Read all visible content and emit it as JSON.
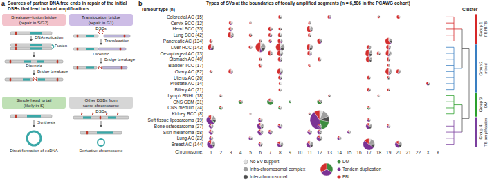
{
  "panel_a": {
    "panel_label": "a",
    "title": "Sources of partner DNA free ends in repair of the initial DSBs that lead to focal amplifications",
    "boxes": [
      {
        "title": [
          "Breakage–fusion bridge",
          "(repair in S/G2)"
        ],
        "color": "#f3c3cc",
        "labels": [
          "DNA replication",
          "Fusion",
          "Dicentric",
          "Bridge breakage"
        ]
      },
      {
        "title": [
          "Translocation bridge",
          "(repair in G1)"
        ],
        "color": "#cdbde6",
        "labels": [
          "DSBs",
          "Translocation",
          "Dicentric",
          "Bridge breakage"
        ]
      },
      {
        "title": [
          "Simple head to tail",
          "(likely in S)"
        ],
        "color": "#bfe0b5",
        "labels": [
          "Synthesis",
          "Direct formation of ecDNA"
        ]
      },
      {
        "title": [
          "Other DSBs from",
          "same chromosome"
        ],
        "color": "#d6d6d6",
        "labels": [
          "DSBs",
          "Derivative chromosome"
        ]
      }
    ]
  },
  "chart_data": {
    "type": "bubble_pie",
    "panel_label": "b",
    "title": "Types of SVs at the boundaries of focally amplified segments (n = 6,586 in the PCAWG cohort)",
    "y_label": "Tumour type (n)",
    "x_label": "Chromosome:",
    "cluster_title": "Cluster",
    "grid": false,
    "categories": [
      "1",
      "2",
      "3",
      "4",
      "5",
      "6",
      "7",
      "8",
      "9",
      "10",
      "11",
      "12",
      "13",
      "14",
      "15",
      "16",
      "17",
      "18",
      "19",
      "20",
      "21",
      "22",
      "X",
      "Y"
    ],
    "rows": [
      "Colorectal AC (15)",
      "Cervix SCC (12)",
      "Head SCC (35)",
      "Lung SCC (42)",
      "Pancreatic AC (134)",
      "Liver HCC (143)",
      "Oesophageal AC (73)",
      "Stomach AC (40)",
      "Bladder TCC (17)",
      "Ovary AC (82)",
      "Uterus AC (26)",
      "Prostate AC (14)",
      "Biliary AC (21)",
      "Lymph BNHL (18)",
      "CNS GBM (31)",
      "CNS medullo (24)",
      "Kidney RCC (8)",
      "Soft tissue liposarcoma (19)",
      "Bone osteosarcoma (27)",
      "Skin melanoma (58)",
      "Lung AC (23)",
      "Breast AC (144)"
    ],
    "sv_types": [
      {
        "name": "No SV support",
        "color": "#e0e0e0"
      },
      {
        "name": "Intra-chromosomal complex",
        "color": "#9e9e9e"
      },
      {
        "name": "Inter-chromosomal",
        "color": "#4d4d4d"
      },
      {
        "name": "DM",
        "color": "#3d8c40"
      },
      {
        "name": "Tandem duplication",
        "color": "#7b3294"
      },
      {
        "name": "FBI",
        "color": "#d32f2f"
      }
    ],
    "bubbles": [
      [
        "Colorectal AC (15)",
        "8",
        [
          1,
          1,
          1,
          0,
          0,
          3
        ]
      ],
      [
        "Colorectal AC (15)",
        "13",
        [
          0,
          1,
          1,
          0,
          1,
          3
        ]
      ],
      [
        "Colorectal AC (15)",
        "18",
        [
          0,
          0,
          1,
          0,
          0,
          2
        ]
      ],
      [
        "Colorectal AC (15)",
        "20",
        [
          1,
          1,
          0,
          0,
          0,
          4
        ]
      ],
      [
        "Cervix SCC (12)",
        "3",
        [
          1,
          1,
          1,
          0,
          1,
          3
        ]
      ],
      [
        "Cervix SCC (12)",
        "5",
        [
          0,
          1,
          0,
          0,
          0,
          2
        ]
      ],
      [
        "Cervix SCC (12)",
        "11",
        [
          0,
          1,
          1,
          0,
          0,
          2
        ]
      ],
      [
        "Head SCC (35)",
        "3",
        [
          1,
          2,
          1,
          0,
          1,
          4
        ]
      ],
      [
        "Head SCC (35)",
        "7",
        [
          1,
          1,
          1,
          0,
          1,
          5
        ]
      ],
      [
        "Head SCC (35)",
        "8",
        [
          0,
          1,
          1,
          0,
          0,
          3
        ]
      ],
      [
        "Head SCC (35)",
        "11",
        [
          2,
          3,
          2,
          0,
          1,
          10
        ]
      ],
      [
        "Lung SCC (42)",
        "3",
        [
          2,
          3,
          2,
          0,
          1,
          8
        ]
      ],
      [
        "Lung SCC (42)",
        "5",
        [
          0,
          1,
          1,
          0,
          0,
          3
        ]
      ],
      [
        "Lung SCC (42)",
        "7",
        [
          1,
          1,
          1,
          0,
          1,
          3
        ]
      ],
      [
        "Lung SCC (42)",
        "8",
        [
          1,
          2,
          1,
          0,
          0,
          4
        ]
      ],
      [
        "Lung SCC (42)",
        "11",
        [
          1,
          1,
          1,
          0,
          0,
          3
        ]
      ],
      [
        "Pancreatic AC (134)",
        "1",
        [
          1,
          1,
          1,
          0,
          0,
          3
        ]
      ],
      [
        "Pancreatic AC (134)",
        "6",
        [
          0,
          1,
          1,
          0,
          0,
          2
        ]
      ],
      [
        "Pancreatic AC (134)",
        "7",
        [
          0,
          1,
          1,
          0,
          1,
          2
        ]
      ],
      [
        "Pancreatic AC (134)",
        "8",
        [
          1,
          2,
          1,
          0,
          1,
          6
        ]
      ],
      [
        "Pancreatic AC (134)",
        "12",
        [
          1,
          2,
          1,
          0,
          1,
          6
        ]
      ],
      [
        "Pancreatic AC (134)",
        "19",
        [
          2,
          3,
          2,
          0,
          1,
          12
        ]
      ],
      [
        "Liver HCC (143)",
        "1",
        [
          3,
          3,
          2,
          0,
          2,
          8
        ]
      ],
      [
        "Liver HCC (143)",
        "5",
        [
          1,
          1,
          1,
          0,
          0,
          3
        ]
      ],
      [
        "Liver HCC (143)",
        "6",
        [
          4,
          8,
          6,
          1,
          3,
          20
        ]
      ],
      [
        "Liver HCC (143)",
        "8",
        [
          4,
          6,
          5,
          0,
          2,
          16
        ]
      ],
      [
        "Liver HCC (143)",
        "11",
        [
          2,
          4,
          3,
          0,
          1,
          8
        ]
      ],
      [
        "Liver HCC (143)",
        "17",
        [
          1,
          2,
          1,
          0,
          1,
          4
        ]
      ],
      [
        "Liver HCC (143)",
        "19",
        [
          1,
          2,
          1,
          0,
          1,
          5
        ]
      ],
      [
        "Oesophageal AC (73)",
        "7",
        [
          1,
          2,
          1,
          0,
          1,
          5
        ]
      ],
      [
        "Oesophageal AC (73)",
        "8",
        [
          2,
          3,
          2,
          0,
          1,
          7
        ]
      ],
      [
        "Oesophageal AC (73)",
        "11",
        [
          1,
          2,
          1,
          0,
          1,
          5
        ]
      ],
      [
        "Oesophageal AC (73)",
        "17",
        [
          2,
          4,
          3,
          0,
          2,
          10
        ]
      ],
      [
        "Oesophageal AC (73)",
        "18",
        [
          1,
          1,
          1,
          0,
          0,
          3
        ]
      ],
      [
        "Oesophageal AC (73)",
        "19",
        [
          2,
          3,
          2,
          0,
          1,
          7
        ]
      ],
      [
        "Stomach AC (40)",
        "6",
        [
          0,
          1,
          1,
          0,
          0,
          2
        ]
      ],
      [
        "Stomach AC (40)",
        "8",
        [
          1,
          2,
          1,
          0,
          1,
          4
        ]
      ],
      [
        "Stomach AC (40)",
        "12",
        [
          1,
          1,
          1,
          0,
          0,
          3
        ]
      ],
      [
        "Stomach AC (40)",
        "17",
        [
          2,
          3,
          2,
          0,
          1,
          8
        ]
      ],
      [
        "Stomach AC (40)",
        "19",
        [
          1,
          1,
          1,
          0,
          0,
          3
        ]
      ],
      [
        "Bladder TCC (17)",
        "6",
        [
          1,
          1,
          1,
          0,
          0,
          4
        ]
      ],
      [
        "Bladder TCC (17)",
        "11",
        [
          1,
          1,
          0,
          0,
          0,
          3
        ]
      ],
      [
        "Bladder TCC (17)",
        "19",
        [
          0,
          1,
          1,
          0,
          0,
          2
        ]
      ],
      [
        "Ovary AC (82)",
        "1",
        [
          1,
          1,
          1,
          0,
          0,
          2
        ]
      ],
      [
        "Ovary AC (82)",
        "3",
        [
          1,
          2,
          1,
          0,
          1,
          5
        ]
      ],
      [
        "Ovary AC (82)",
        "8",
        [
          2,
          3,
          2,
          0,
          2,
          7
        ]
      ],
      [
        "Ovary AC (82)",
        "19",
        [
          2,
          4,
          2,
          0,
          1,
          9
        ]
      ],
      [
        "Ovary AC (82)",
        "20",
        [
          1,
          2,
          1,
          0,
          1,
          4
        ]
      ],
      [
        "Uterus AC (26)",
        "8",
        [
          1,
          1,
          1,
          0,
          1,
          3
        ]
      ],
      [
        "Uterus AC (26)",
        "17",
        [
          1,
          1,
          1,
          0,
          0,
          3
        ]
      ],
      [
        "Uterus AC (26)",
        "19",
        [
          1,
          1,
          1,
          0,
          0,
          2
        ]
      ],
      [
        "Prostate AC (14)",
        "8",
        [
          1,
          1,
          0,
          0,
          0,
          2
        ]
      ],
      [
        "Prostate AC (14)",
        "X",
        [
          1,
          1,
          1,
          0,
          1,
          2
        ]
      ],
      [
        "Biliary AC (21)",
        "8",
        [
          1,
          1,
          1,
          0,
          0,
          2
        ]
      ],
      [
        "Biliary AC (21)",
        "17",
        [
          1,
          1,
          1,
          0,
          1,
          3
        ]
      ],
      [
        "Biliary AC (21)",
        "19",
        [
          0,
          1,
          1,
          0,
          0,
          2
        ]
      ],
      [
        "Lymph BNHL (18)",
        "2",
        [
          1,
          1,
          1,
          0,
          0,
          1
        ]
      ],
      [
        "Lymph BNHL (18)",
        "13",
        [
          0,
          1,
          1,
          0,
          0,
          1
        ]
      ],
      [
        "Lymph BNHL (18)",
        "18",
        [
          1,
          1,
          0,
          0,
          0,
          1
        ]
      ],
      [
        "CNS GBM (31)",
        "4",
        [
          1,
          1,
          1,
          4,
          0,
          1
        ]
      ],
      [
        "CNS GBM (31)",
        "7",
        [
          2,
          2,
          1,
          10,
          1,
          2
        ]
      ],
      [
        "CNS GBM (31)",
        "9",
        [
          0,
          1,
          0,
          2,
          0,
          0
        ]
      ],
      [
        "CNS GBM (31)",
        "12",
        [
          1,
          2,
          1,
          6,
          0,
          1
        ]
      ],
      [
        "CNS medullo (24)",
        "2",
        [
          1,
          1,
          1,
          2,
          0,
          1
        ]
      ],
      [
        "CNS medullo (24)",
        "8",
        [
          1,
          1,
          1,
          2,
          0,
          1
        ]
      ],
      [
        "CNS medullo (24)",
        "17",
        [
          1,
          1,
          1,
          1,
          0,
          1
        ]
      ],
      [
        "Kidney RCC (8)",
        "5",
        [
          0,
          1,
          0,
          0,
          0,
          1
        ]
      ],
      [
        "Kidney RCC (8)",
        "11",
        [
          0,
          1,
          1,
          0,
          0,
          1
        ]
      ],
      [
        "Soft tissue liposarcoma (19)",
        "1",
        [
          3,
          6,
          4,
          2,
          20,
          4
        ]
      ],
      [
        "Soft tissue liposarcoma (19)",
        "6",
        [
          1,
          2,
          1,
          0,
          4,
          1
        ]
      ],
      [
        "Soft tissue liposarcoma (19)",
        "12",
        [
          10,
          20,
          15,
          30,
          70,
          15
        ]
      ],
      [
        "Soft tissue liposarcoma (19)",
        "17",
        [
          1,
          1,
          1,
          0,
          2,
          1
        ]
      ],
      [
        "Bone osteosarcoma (27)",
        "1",
        [
          1,
          2,
          1,
          0,
          4,
          1
        ]
      ],
      [
        "Bone osteosarcoma (27)",
        "6",
        [
          2,
          3,
          2,
          1,
          8,
          2
        ]
      ],
      [
        "Bone osteosarcoma (27)",
        "8",
        [
          1,
          2,
          1,
          0,
          4,
          2
        ]
      ],
      [
        "Bone osteosarcoma (27)",
        "12",
        [
          1,
          1,
          1,
          0,
          3,
          1
        ]
      ],
      [
        "Bone osteosarcoma (27)",
        "17",
        [
          2,
          3,
          2,
          0,
          6,
          2
        ]
      ],
      [
        "Bone osteosarcoma (27)",
        "19",
        [
          1,
          1,
          1,
          0,
          2,
          1
        ]
      ],
      [
        "Skin melanoma (58)",
        "1",
        [
          1,
          2,
          1,
          0,
          4,
          2
        ]
      ],
      [
        "Skin melanoma (58)",
        "6",
        [
          2,
          2,
          2,
          0,
          6,
          2
        ]
      ],
      [
        "Skin melanoma (58)",
        "7",
        [
          1,
          2,
          1,
          0,
          3,
          2
        ]
      ],
      [
        "Skin melanoma (58)",
        "11",
        [
          1,
          2,
          1,
          0,
          4,
          2
        ]
      ],
      [
        "Skin melanoma (58)",
        "12",
        [
          1,
          2,
          2,
          0,
          4,
          1
        ]
      ],
      [
        "Skin melanoma (58)",
        "15",
        [
          1,
          1,
          1,
          0,
          2,
          1
        ]
      ],
      [
        "Lung AC (23)",
        "1",
        [
          1,
          2,
          1,
          0,
          3,
          1
        ]
      ],
      [
        "Lung AC (23)",
        "5",
        [
          1,
          1,
          1,
          0,
          3,
          1
        ]
      ],
      [
        "Lung AC (23)",
        "12",
        [
          2,
          3,
          2,
          0,
          6,
          2
        ]
      ],
      [
        "Lung AC (23)",
        "14",
        [
          1,
          2,
          1,
          0,
          3,
          1
        ]
      ],
      [
        "Breast AC (144)",
        "1",
        [
          3,
          5,
          3,
          0,
          14,
          4
        ]
      ],
      [
        "Breast AC (144)",
        "6",
        [
          1,
          2,
          1,
          0,
          3,
          1
        ]
      ],
      [
        "Breast AC (144)",
        "8",
        [
          2,
          3,
          2,
          0,
          6,
          3
        ]
      ],
      [
        "Breast AC (144)",
        "11",
        [
          2,
          4,
          3,
          0,
          8,
          3
        ]
      ],
      [
        "Breast AC (144)",
        "17",
        [
          4,
          10,
          6,
          0,
          30,
          8
        ]
      ],
      [
        "Breast AC (144)",
        "20",
        [
          2,
          4,
          3,
          0,
          8,
          3
        ]
      ]
    ],
    "clusters": [
      {
        "group": "Group 1",
        "label": "FBI/BFB",
        "color": "#d62728",
        "first": "Colorectal AC (15)",
        "last": "Pancreatic AC (134)"
      },
      {
        "group": "Group 2",
        "label": "mixed",
        "color": "#3a7fc1",
        "first": "Liver HCC (143)",
        "last": "Biliary AC (21)"
      },
      {
        "group": "Group 3",
        "label": "DM",
        "color": "#2ca02c",
        "first": "Lymph BNHL (18)",
        "last": "Kidney RCC (8)"
      },
      {
        "group": "Group 4",
        "label": "TB amplification",
        "color": "#7b3f9e",
        "first": "Soft tissue liposarcoma (19)",
        "last": "Breast AC (144)"
      }
    ]
  }
}
